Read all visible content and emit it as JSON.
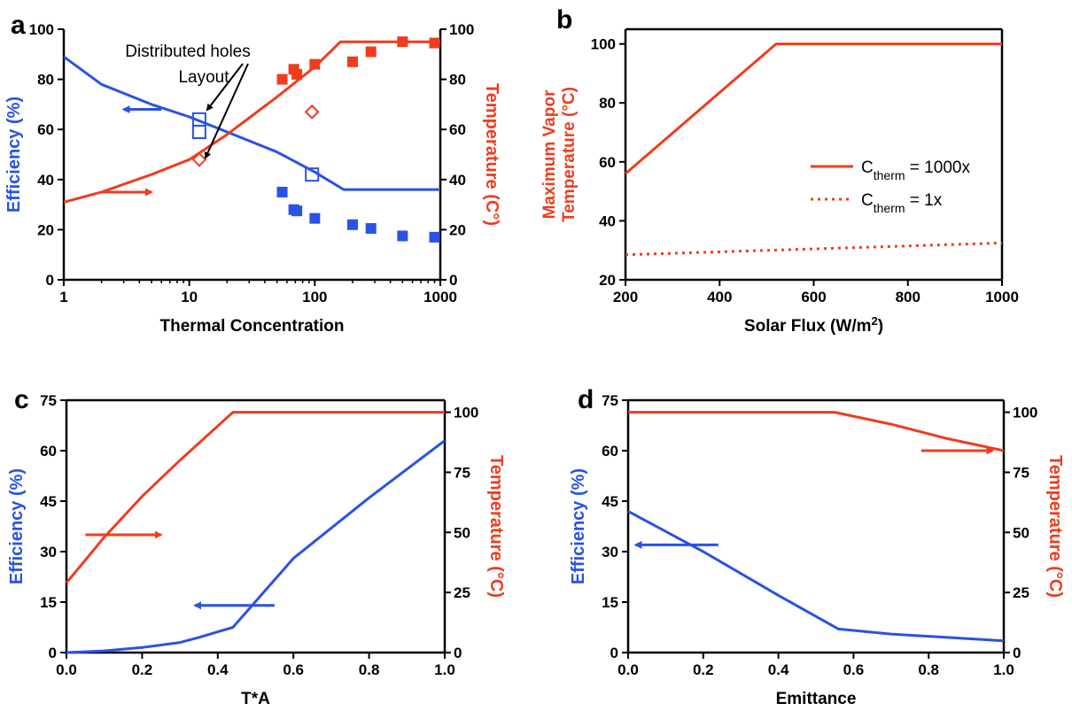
{
  "colors": {
    "blue": "#2a52e6",
    "red": "#f03c1e",
    "axis": "#000000"
  },
  "chart_data": [
    {
      "panel": "a",
      "type": "line",
      "xlabel": "Thermal Concentration",
      "ylabel_left": "Efficiency (%)",
      "ylabel_right": "Temperature (C°)",
      "x_scale": "log",
      "xlim": [
        1,
        1000
      ],
      "xticks": [
        1,
        10,
        100,
        1000
      ],
      "ylim_left": [
        0,
        100
      ],
      "yticks_left": [
        0,
        20,
        40,
        60,
        80,
        100
      ],
      "ylim_right": [
        0,
        100
      ],
      "yticks_right": [
        0,
        20,
        40,
        60,
        80,
        100
      ],
      "annotation_lines": [
        "Distributed holes",
        "Layout"
      ],
      "series": [
        {
          "axis": "left",
          "style": "line",
          "color": "blue",
          "x": [
            1,
            2,
            5,
            10,
            20,
            50,
            100,
            170,
            300,
            500,
            1000
          ],
          "y": [
            89,
            78,
            70,
            65,
            59,
            51,
            43,
            36,
            36,
            36,
            36
          ]
        },
        {
          "axis": "left",
          "style": "filled-square",
          "color": "blue",
          "x": [
            55,
            68,
            72,
            100,
            200,
            280,
            500,
            900
          ],
          "y": [
            35,
            28,
            27.5,
            24.5,
            22,
            20.5,
            17.5,
            17
          ]
        },
        {
          "axis": "left",
          "style": "open-square",
          "color": "blue",
          "x": [
            12,
            12,
            95
          ],
          "y": [
            64,
            59,
            42
          ]
        },
        {
          "axis": "right",
          "style": "line",
          "color": "red",
          "x": [
            1,
            2,
            5,
            10,
            20,
            50,
            100,
            160,
            300,
            500,
            1000
          ],
          "y": [
            31,
            35,
            42,
            48,
            58,
            73,
            85,
            95,
            95,
            95,
            95
          ]
        },
        {
          "axis": "right",
          "style": "filled-square",
          "color": "red",
          "x": [
            55,
            68,
            72,
            100,
            200,
            280,
            500,
            900
          ],
          "y": [
            80,
            84,
            82,
            86,
            87,
            91,
            95,
            94.5
          ]
        },
        {
          "axis": "right",
          "style": "open-diamond",
          "color": "red",
          "x": [
            12,
            95
          ],
          "y": [
            48,
            67
          ]
        }
      ],
      "arrows": [
        {
          "direction": "left",
          "color": "blue",
          "axis": "left",
          "x_from": 6,
          "x_to": 3,
          "y": 68
        },
        {
          "direction": "right",
          "color": "red",
          "axis": "right",
          "x_from": 2,
          "x_to": 5,
          "y": 35
        }
      ]
    },
    {
      "panel": "b",
      "type": "line",
      "xlabel": "Solar Flux (W/m²)",
      "ylabel": "Maximum Vapor Temperature (°C)",
      "xlim": [
        200,
        1000
      ],
      "xticks": [
        200,
        400,
        600,
        800,
        1000
      ],
      "ylim": [
        20,
        105
      ],
      "yticks": [
        20,
        40,
        60,
        80,
        100
      ],
      "legend": [
        {
          "label": "C",
          "sub": "therm",
          "suffix": " = 1000x",
          "style": "solid"
        },
        {
          "label": "C",
          "sub": "therm",
          "suffix": " = 1x",
          "style": "dotted"
        }
      ],
      "series": [
        {
          "style": "solid",
          "color": "red",
          "x": [
            200,
            520,
            1000
          ],
          "y": [
            56,
            100,
            100
          ]
        },
        {
          "style": "dotted",
          "color": "red",
          "x": [
            200,
            1000
          ],
          "y": [
            28.5,
            32.5
          ]
        }
      ]
    },
    {
      "panel": "c",
      "type": "line",
      "xlabel": "T*A",
      "ylabel_left": "Efficiency (%)",
      "ylabel_right": "Temperature (°C)",
      "xlim": [
        0,
        1
      ],
      "xticks": [
        "0.0",
        "0.2",
        "0.4",
        "0.6",
        "0.8",
        "1.0"
      ],
      "ylim_left": [
        0,
        75
      ],
      "yticks_left": [
        0,
        15,
        30,
        45,
        60,
        75
      ],
      "ylim_right": [
        0,
        105
      ],
      "yticks_right": [
        0,
        25,
        50,
        75,
        100
      ],
      "series": [
        {
          "axis": "left",
          "color": "blue",
          "x": [
            0,
            0.1,
            0.2,
            0.3,
            0.35,
            0.44,
            0.6,
            0.8,
            1.0
          ],
          "y": [
            0,
            0.5,
            1.5,
            3,
            4.5,
            7.5,
            28,
            46,
            63
          ]
        },
        {
          "axis": "right",
          "color": "red",
          "x": [
            0,
            0.1,
            0.2,
            0.3,
            0.44,
            0.6,
            0.8,
            1.0
          ],
          "y": [
            29,
            48,
            65,
            80,
            100,
            100,
            100,
            100
          ]
        }
      ],
      "arrows": [
        {
          "direction": "left",
          "color": "blue",
          "axis": "left",
          "x_from": 0.55,
          "x_to": 0.34,
          "y": 14
        },
        {
          "direction": "right",
          "color": "red",
          "axis": "left",
          "x_from": 0.05,
          "x_to": 0.25,
          "y": 35
        }
      ]
    },
    {
      "panel": "d",
      "type": "line",
      "xlabel": "Emittance",
      "ylabel_left": "Efficiency (%)",
      "ylabel_right": "Temperature (°C)",
      "xlim": [
        0,
        1
      ],
      "xticks": [
        "0.0",
        "0.2",
        "0.4",
        "0.6",
        "0.8",
        "1.0"
      ],
      "ylim_left": [
        0,
        75
      ],
      "yticks_left": [
        0,
        15,
        30,
        45,
        60,
        75
      ],
      "ylim_right": [
        0,
        105
      ],
      "yticks_right": [
        0,
        25,
        50,
        75,
        100
      ],
      "series": [
        {
          "axis": "left",
          "color": "blue",
          "x": [
            0,
            0.2,
            0.4,
            0.56,
            0.7,
            0.85,
            1.0
          ],
          "y": [
            42,
            30,
            17,
            7,
            5.5,
            4.5,
            3.5
          ]
        },
        {
          "axis": "right",
          "color": "red",
          "x": [
            0,
            0.2,
            0.4,
            0.55,
            0.7,
            0.85,
            1.0
          ],
          "y": [
            100,
            100,
            100,
            100,
            95,
            89,
            84
          ]
        }
      ],
      "arrows": [
        {
          "direction": "left",
          "color": "blue",
          "axis": "left",
          "x_from": 0.24,
          "x_to": 0.02,
          "y": 32
        },
        {
          "direction": "right",
          "color": "red",
          "axis": "left",
          "x_from": 0.78,
          "x_to": 0.97,
          "y": 60
        }
      ]
    }
  ]
}
